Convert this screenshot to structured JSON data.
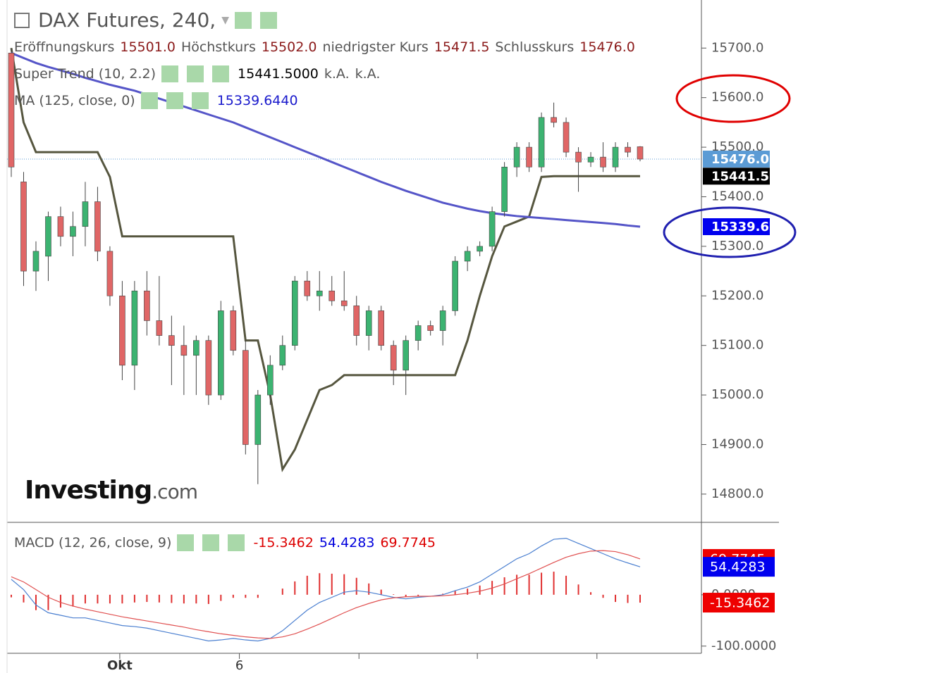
{
  "title": "DAX Futures, 240,",
  "ohlc": [
    {
      "label": "Eröffnungskurs",
      "value": "15501.0"
    },
    {
      "label": "Höchstkurs",
      "value": "15502.0"
    },
    {
      "label": "niedrigster Kurs",
      "value": "15471.5"
    },
    {
      "label": "Schlusskurs",
      "value": "15476.0"
    }
  ],
  "indicators": [
    {
      "name": "Super Trend (10, 2.2)",
      "values": [
        "15441.5000",
        "k.A.",
        "k.A."
      ]
    },
    {
      "name": "MA (125, close, 0)",
      "values": [
        "15339.6440"
      ]
    }
  ],
  "macd_legend": {
    "name": "MACD (12, 26, close, 9)",
    "values": [
      "-15.3462",
      "54.4283",
      "69.7745"
    ]
  },
  "logo": {
    "brand": "Investing",
    "suffix": ".com"
  },
  "chart_data": [
    {
      "type": "candlestick",
      "up_color": "#3cb371",
      "down_color": "#e06666",
      "candles": {
        "open": [
          15690,
          15430,
          15250,
          15280,
          15360,
          15320,
          15340,
          15390,
          15290,
          15200,
          15060,
          15210,
          15150,
          15120,
          15100,
          15080,
          15110,
          15000,
          15170,
          15090,
          14900,
          15000,
          15060,
          15100,
          15230,
          15200,
          15210,
          15190,
          15180,
          15120,
          15170,
          15100,
          15050,
          15110,
          15140,
          15130,
          15170,
          15270,
          15290,
          15300,
          15370,
          15460,
          15500,
          15460,
          15560,
          15550,
          15490,
          15470,
          15480,
          15460,
          15500,
          15501
        ],
        "high": [
          15700,
          15450,
          15310,
          15370,
          15380,
          15370,
          15430,
          15420,
          15300,
          15230,
          15230,
          15250,
          15240,
          15160,
          15140,
          15120,
          15120,
          15190,
          15180,
          15110,
          15010,
          15080,
          15120,
          15240,
          15250,
          15250,
          15240,
          15250,
          15200,
          15180,
          15180,
          15110,
          15120,
          15150,
          15150,
          15180,
          15280,
          15300,
          15310,
          15380,
          15470,
          15510,
          15510,
          15570,
          15590,
          15560,
          15500,
          15490,
          15510,
          15510,
          15510,
          15502
        ],
        "low": [
          15440,
          15220,
          15210,
          15230,
          15300,
          15280,
          15300,
          15270,
          15180,
          15030,
          15010,
          15120,
          15100,
          15020,
          15000,
          15000,
          14980,
          14990,
          15080,
          14880,
          14820,
          14980,
          15050,
          15090,
          15190,
          15170,
          15180,
          15170,
          15100,
          15090,
          15090,
          15020,
          15000,
          15090,
          15120,
          15100,
          15160,
          15250,
          15280,
          15290,
          15360,
          15440,
          15450,
          15450,
          15540,
          15480,
          15410,
          15460,
          15450,
          15450,
          15480,
          15471.5
        ],
        "close": [
          15460,
          15250,
          15290,
          15360,
          15320,
          15340,
          15390,
          15290,
          15200,
          15060,
          15210,
          15150,
          15120,
          15100,
          15080,
          15110,
          15000,
          15170,
          15090,
          14900,
          15000,
          15060,
          15100,
          15230,
          15200,
          15210,
          15190,
          15180,
          15120,
          15170,
          15100,
          15050,
          15110,
          15140,
          15130,
          15170,
          15270,
          15290,
          15300,
          15370,
          15460,
          15500,
          15460,
          15560,
          15550,
          15490,
          15470,
          15480,
          15460,
          15500,
          15490,
          15476
        ]
      },
      "series": [
        {
          "color": "#56563f",
          "values": [
            15700,
            15550,
            15490,
            15490,
            15490,
            15490,
            15490,
            15490,
            15440,
            15320,
            15320,
            15320,
            15320,
            15320,
            15320,
            15320,
            15320,
            15320,
            15320,
            15110,
            15110,
            15000,
            14850,
            14890,
            14950,
            15010,
            15020,
            15040,
            15040,
            15040,
            15040,
            15040,
            15040,
            15040,
            15040,
            15040,
            15040,
            15110,
            15200,
            15280,
            15340,
            15350,
            15360,
            15440,
            15441.5,
            15441.5,
            15441.5,
            15441.5,
            15441.5,
            15441.5,
            15441.5,
            15441.5
          ]
        },
        {
          "color": "#5555c8",
          "values": [
            15690,
            15680,
            15670,
            15662,
            15655,
            15648,
            15640,
            15633,
            15626,
            15620,
            15614,
            15606,
            15598,
            15590,
            15582,
            15574,
            15566,
            15558,
            15550,
            15540,
            15530,
            15520,
            15510,
            15500,
            15490,
            15480,
            15470,
            15460,
            15450,
            15440,
            15430,
            15421,
            15412,
            15404,
            15396,
            15388,
            15382,
            15376,
            15371,
            15367,
            15364,
            15361,
            15359,
            15357,
            15355,
            15353,
            15351,
            15349,
            15347,
            15345,
            15342,
            15339.6
          ]
        }
      ],
      "ylim": [
        14743,
        15797
      ],
      "yticks": [
        {
          "value": 14800,
          "label": "14800.0"
        },
        {
          "value": 14900,
          "label": "14900.0"
        },
        {
          "value": 15000,
          "label": "15000.0"
        },
        {
          "value": 15100,
          "label": "15100.0"
        },
        {
          "value": 15200,
          "label": "15200.0"
        },
        {
          "value": 15300,
          "label": "15300.0"
        },
        {
          "value": 15400,
          "label": "15400.0"
        },
        {
          "value": 15500,
          "label": "15500.0"
        },
        {
          "value": 15600,
          "label": "15600.0"
        },
        {
          "value": 15700,
          "label": "15700.0"
        }
      ],
      "tags": [
        {
          "value": 15476,
          "label": "15476.0",
          "color": "#5b9bd5"
        },
        {
          "value": 15441.5,
          "label": "15441.5",
          "color": "#000000"
        },
        {
          "value": 15339.6,
          "label": "15339.6",
          "color": "#0000ee"
        }
      ],
      "xticks": [
        {
          "value": 8.8,
          "label": "Okt"
        },
        {
          "value": 18.5,
          "label": "6"
        },
        {
          "value": 28.2,
          "label": null
        },
        {
          "value": 37.8,
          "label": null
        },
        {
          "value": 47.5,
          "label": null
        }
      ]
    },
    {
      "type": "macd",
      "series": [
        {
          "color": "#4a7fd0",
          "values": [
            30,
            10,
            -20,
            -35,
            -40,
            -45,
            -45,
            -50,
            -55,
            -60,
            -62,
            -65,
            -70,
            -75,
            -80,
            -85,
            -90,
            -88,
            -85,
            -88,
            -90,
            -85,
            -70,
            -50,
            -30,
            -15,
            -5,
            5,
            8,
            5,
            0,
            -5,
            -8,
            -5,
            -3,
            0,
            8,
            15,
            25,
            40,
            55,
            70,
            80,
            95,
            108,
            110,
            100,
            90,
            80,
            70,
            62,
            54.4283
          ]
        },
        {
          "color": "#e05050",
          "values": [
            35,
            25,
            10,
            -5,
            -15,
            -22,
            -28,
            -33,
            -38,
            -43,
            -47,
            -51,
            -55,
            -59,
            -63,
            -68,
            -72,
            -76,
            -79,
            -82,
            -84,
            -85,
            -82,
            -76,
            -67,
            -57,
            -46,
            -35,
            -25,
            -17,
            -10,
            -6,
            -4,
            -3,
            -3,
            -2,
            0,
            3,
            7,
            13,
            21,
            31,
            41,
            52,
            63,
            73,
            80,
            85,
            86,
            84,
            78,
            69.7745
          ]
        }
      ],
      "histogram": {
        "color": "#e03030",
        "values": [
          -5,
          -15,
          -30,
          -30,
          -25,
          -23,
          -17,
          -17,
          -17,
          -17,
          -15,
          -14,
          -15,
          -16,
          -17,
          -17,
          -18,
          -12,
          -6,
          -6,
          -6,
          0,
          12,
          26,
          37,
          42,
          41,
          40,
          33,
          22,
          10,
          1,
          -4,
          -2,
          0,
          2,
          8,
          12,
          18,
          27,
          34,
          39,
          39,
          43,
          45,
          37,
          20,
          5,
          -6,
          -14,
          -16,
          -15.3462
        ]
      },
      "ylim": [
        -114,
        141
      ],
      "yticks": [
        {
          "value": -100,
          "label": "-100.0000"
        },
        {
          "value": 0,
          "label": "0.0000"
        }
      ],
      "tags": [
        {
          "value": 69.7745,
          "label": "69.7745",
          "color": "#ee0000"
        },
        {
          "value": 54.4283,
          "label": "54.4283",
          "color": "#0000ee"
        },
        {
          "value": -15.3462,
          "label": "-15.3462",
          "color": "#ee0000"
        }
      ]
    }
  ]
}
